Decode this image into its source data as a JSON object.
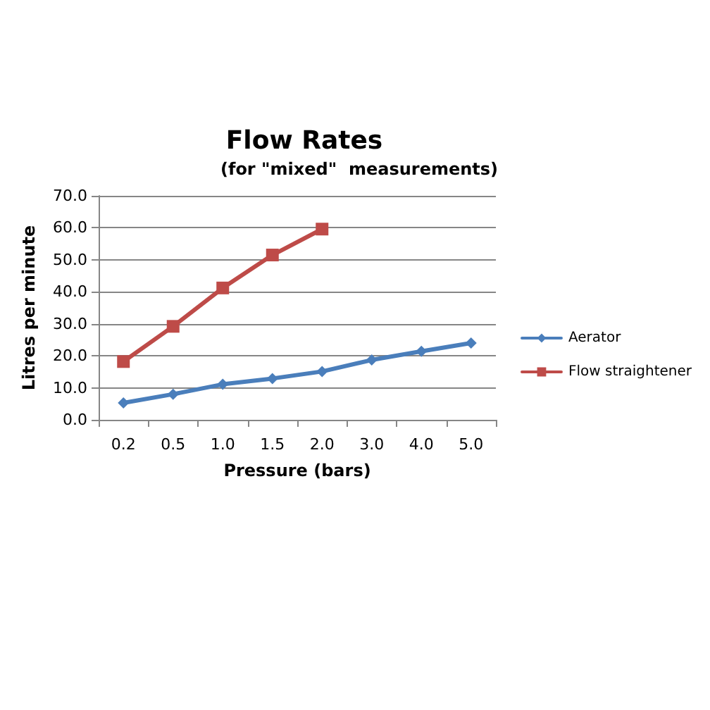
{
  "chart_data": {
    "type": "line",
    "title": "Flow Rates",
    "subtitle": "(for \"mixed\"  measurements)",
    "xlabel": "Pressure (bars)",
    "ylabel": "Litres per minute",
    "categories": [
      "0.2",
      "0.5",
      "1.0",
      "1.5",
      "2.0",
      "3.0",
      "4.0",
      "5.0"
    ],
    "series": [
      {
        "name": "Aerator",
        "color": "#4a7ebb",
        "marker": "diamond",
        "values": [
          5.3,
          8.0,
          11.1,
          12.9,
          15.1,
          18.7,
          21.4,
          24.0
        ]
      },
      {
        "name": "Flow straightener",
        "color": "#be4b48",
        "marker": "square",
        "values": [
          18.2,
          29.2,
          41.2,
          51.5,
          59.6,
          null,
          null,
          null
        ]
      }
    ],
    "ylim": [
      0,
      70
    ],
    "yticks": [
      {
        "value": 0,
        "label": "0.0"
      },
      {
        "value": 10,
        "label": "10.0"
      },
      {
        "value": 20,
        "label": "20.0"
      },
      {
        "value": 30,
        "label": "30.0"
      },
      {
        "value": 40,
        "label": "40.0"
      },
      {
        "value": 50,
        "label": "50.0"
      },
      {
        "value": 60,
        "label": "60.0"
      },
      {
        "value": 70,
        "label": "70.0"
      }
    ],
    "grid": "y",
    "legend": "right"
  }
}
